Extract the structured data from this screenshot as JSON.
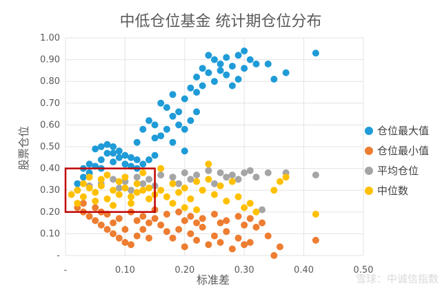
{
  "chart_data": {
    "type": "scatter",
    "title": "中低仓位基金  统计期仓位分布",
    "xlabel": "标准差",
    "ylabel": "股票仓位",
    "xlim": [
      0,
      0.5
    ],
    "ylim": [
      0,
      1.0
    ],
    "x_tick_labels": [
      "-",
      "0.10",
      "0.20",
      "0.30",
      "0.40",
      "0.50"
    ],
    "y_tick_labels": [
      "-",
      "0.10",
      "0.20",
      "0.30",
      "0.40",
      "0.50",
      "0.60",
      "0.70",
      "0.80",
      "0.90",
      "1.00"
    ],
    "grid": true,
    "legend_position": "right",
    "highlight_box": {
      "x_range": [
        0.0,
        0.15
      ],
      "y_range": [
        0.2,
        0.4
      ],
      "color": "#c00000"
    },
    "series": [
      {
        "name": "仓位最大值",
        "color": "#1f9bd7",
        "points": [
          [
            0.02,
            0.33
          ],
          [
            0.03,
            0.36
          ],
          [
            0.04,
            0.38
          ],
          [
            0.05,
            0.41
          ],
          [
            0.06,
            0.44
          ],
          [
            0.07,
            0.47
          ],
          [
            0.08,
            0.5
          ],
          [
            0.09,
            0.48
          ],
          [
            0.1,
            0.46
          ],
          [
            0.11,
            0.45
          ],
          [
            0.12,
            0.44
          ],
          [
            0.04,
            0.42
          ],
          [
            0.06,
            0.4
          ],
          [
            0.08,
            0.43
          ],
          [
            0.1,
            0.42
          ],
          [
            0.11,
            0.41
          ],
          [
            0.12,
            0.4
          ],
          [
            0.13,
            0.42
          ],
          [
            0.14,
            0.44
          ],
          [
            0.15,
            0.46
          ],
          [
            0.06,
            0.5
          ],
          [
            0.07,
            0.51
          ],
          [
            0.05,
            0.49
          ],
          [
            0.08,
            0.47
          ],
          [
            0.09,
            0.45
          ],
          [
            0.03,
            0.4
          ],
          [
            0.12,
            0.52
          ],
          [
            0.13,
            0.58
          ],
          [
            0.14,
            0.62
          ],
          [
            0.15,
            0.6
          ],
          [
            0.16,
            0.55
          ],
          [
            0.16,
            0.7
          ],
          [
            0.17,
            0.68
          ],
          [
            0.18,
            0.64
          ],
          [
            0.18,
            0.74
          ],
          [
            0.19,
            0.6
          ],
          [
            0.19,
            0.66
          ],
          [
            0.2,
            0.72
          ],
          [
            0.2,
            0.58
          ],
          [
            0.21,
            0.77
          ],
          [
            0.21,
            0.62
          ],
          [
            0.22,
            0.75
          ],
          [
            0.22,
            0.82
          ],
          [
            0.23,
            0.86
          ],
          [
            0.23,
            0.78
          ],
          [
            0.24,
            0.92
          ],
          [
            0.24,
            0.84
          ],
          [
            0.25,
            0.9
          ],
          [
            0.25,
            0.8
          ],
          [
            0.26,
            0.88
          ],
          [
            0.26,
            0.85
          ],
          [
            0.27,
            0.91
          ],
          [
            0.27,
            0.83
          ],
          [
            0.28,
            0.87
          ],
          [
            0.28,
            0.78
          ],
          [
            0.29,
            0.92
          ],
          [
            0.29,
            0.81
          ],
          [
            0.3,
            0.94
          ],
          [
            0.3,
            0.86
          ],
          [
            0.31,
            0.9
          ],
          [
            0.32,
            0.88
          ],
          [
            0.34,
            0.88
          ],
          [
            0.35,
            0.81
          ],
          [
            0.37,
            0.84
          ],
          [
            0.42,
            0.93
          ],
          [
            0.18,
            0.52
          ],
          [
            0.17,
            0.58
          ],
          [
            0.15,
            0.54
          ],
          [
            0.2,
            0.48
          ],
          [
            0.22,
            0.66
          ]
        ]
      },
      {
        "name": "仓位最小值",
        "color": "#ed7d31",
        "points": [
          [
            0.02,
            0.22
          ],
          [
            0.03,
            0.2
          ],
          [
            0.04,
            0.18
          ],
          [
            0.05,
            0.16
          ],
          [
            0.06,
            0.14
          ],
          [
            0.07,
            0.12
          ],
          [
            0.08,
            0.1
          ],
          [
            0.09,
            0.08
          ],
          [
            0.1,
            0.06
          ],
          [
            0.11,
            0.05
          ],
          [
            0.12,
            0.09
          ],
          [
            0.13,
            0.12
          ],
          [
            0.14,
            0.15
          ],
          [
            0.15,
            0.17
          ],
          [
            0.16,
            0.14
          ],
          [
            0.17,
            0.11
          ],
          [
            0.18,
            0.08
          ],
          [
            0.19,
            0.12
          ],
          [
            0.2,
            0.16
          ],
          [
            0.21,
            0.1
          ],
          [
            0.22,
            0.07
          ],
          [
            0.23,
            0.13
          ],
          [
            0.24,
            0.05
          ],
          [
            0.25,
            0.09
          ],
          [
            0.26,
            0.15
          ],
          [
            0.27,
            0.11
          ],
          [
            0.28,
            0.03
          ],
          [
            0.29,
            0.08
          ],
          [
            0.3,
            0.14
          ],
          [
            0.31,
            0.06
          ],
          [
            0.32,
            0.13
          ],
          [
            0.34,
            0.09
          ],
          [
            0.35,
            0.0
          ],
          [
            0.36,
            0.04
          ],
          [
            0.42,
            0.07
          ],
          [
            0.03,
            0.24
          ],
          [
            0.05,
            0.22
          ],
          [
            0.07,
            0.19
          ],
          [
            0.09,
            0.17
          ],
          [
            0.11,
            0.2
          ],
          [
            0.13,
            0.18
          ],
          [
            0.15,
            0.21
          ],
          [
            0.17,
            0.19
          ],
          [
            0.19,
            0.2
          ],
          [
            0.21,
            0.18
          ],
          [
            0.23,
            0.17
          ],
          [
            0.25,
            0.19
          ],
          [
            0.27,
            0.16
          ],
          [
            0.29,
            0.18
          ],
          [
            0.31,
            0.17
          ],
          [
            0.33,
            0.15
          ],
          [
            0.06,
            0.2
          ],
          [
            0.08,
            0.15
          ],
          [
            0.1,
            0.12
          ],
          [
            0.12,
            0.16
          ],
          [
            0.2,
            0.04
          ],
          [
            0.22,
            0.15
          ],
          [
            0.26,
            0.06
          ],
          [
            0.3,
            0.05
          ],
          [
            0.14,
            0.08
          ]
        ]
      },
      {
        "name": "平均仓位",
        "color": "#a5a5a5",
        "points": [
          [
            0.02,
            0.3
          ],
          [
            0.04,
            0.32
          ],
          [
            0.06,
            0.33
          ],
          [
            0.08,
            0.35
          ],
          [
            0.1,
            0.34
          ],
          [
            0.12,
            0.36
          ],
          [
            0.14,
            0.35
          ],
          [
            0.16,
            0.37
          ],
          [
            0.18,
            0.36
          ],
          [
            0.2,
            0.38
          ],
          [
            0.22,
            0.37
          ],
          [
            0.24,
            0.39
          ],
          [
            0.26,
            0.38
          ],
          [
            0.28,
            0.37
          ],
          [
            0.3,
            0.38
          ],
          [
            0.32,
            0.36
          ],
          [
            0.34,
            0.38
          ],
          [
            0.37,
            0.38
          ],
          [
            0.42,
            0.37
          ],
          [
            0.33,
            0.21
          ],
          [
            0.25,
            0.33
          ],
          [
            0.15,
            0.32
          ],
          [
            0.09,
            0.31
          ],
          [
            0.19,
            0.33
          ],
          [
            0.21,
            0.35
          ],
          [
            0.27,
            0.36
          ],
          [
            0.29,
            0.35
          ],
          [
            0.31,
            0.39
          ],
          [
            0.11,
            0.3
          ],
          [
            0.13,
            0.33
          ]
        ]
      },
      {
        "name": "中位数",
        "color": "#ffc000",
        "points": [
          [
            0.01,
            0.28
          ],
          [
            0.02,
            0.3
          ],
          [
            0.03,
            0.27
          ],
          [
            0.04,
            0.31
          ],
          [
            0.05,
            0.29
          ],
          [
            0.06,
            0.32
          ],
          [
            0.07,
            0.26
          ],
          [
            0.08,
            0.3
          ],
          [
            0.09,
            0.28
          ],
          [
            0.1,
            0.31
          ],
          [
            0.11,
            0.27
          ],
          [
            0.12,
            0.29
          ],
          [
            0.13,
            0.3
          ],
          [
            0.14,
            0.26
          ],
          [
            0.02,
            0.24
          ],
          [
            0.03,
            0.33
          ],
          [
            0.05,
            0.25
          ],
          [
            0.06,
            0.35
          ],
          [
            0.08,
            0.23
          ],
          [
            0.09,
            0.34
          ],
          [
            0.11,
            0.24
          ],
          [
            0.12,
            0.33
          ],
          [
            0.14,
            0.31
          ],
          [
            0.15,
            0.28
          ],
          [
            0.16,
            0.3
          ],
          [
            0.17,
            0.27
          ],
          [
            0.18,
            0.33
          ],
          [
            0.19,
            0.29
          ],
          [
            0.2,
            0.31
          ],
          [
            0.21,
            0.26
          ],
          [
            0.22,
            0.34
          ],
          [
            0.23,
            0.3
          ],
          [
            0.24,
            0.35
          ],
          [
            0.25,
            0.28
          ],
          [
            0.26,
            0.32
          ],
          [
            0.27,
            0.25
          ],
          [
            0.28,
            0.34
          ],
          [
            0.29,
            0.27
          ],
          [
            0.3,
            0.22
          ],
          [
            0.31,
            0.24
          ],
          [
            0.32,
            0.2
          ],
          [
            0.35,
            0.3
          ],
          [
            0.36,
            0.34
          ],
          [
            0.37,
            0.36
          ],
          [
            0.42,
            0.19
          ],
          [
            0.24,
            0.42
          ],
          [
            0.16,
            0.4
          ],
          [
            0.18,
            0.24
          ],
          [
            0.2,
            0.22
          ],
          [
            0.22,
            0.21
          ],
          [
            0.07,
            0.37
          ],
          [
            0.04,
            0.36
          ],
          [
            0.13,
            0.38
          ],
          [
            0.1,
            0.36
          ]
        ]
      }
    ]
  },
  "watermark": "雪球：中诚信指数"
}
